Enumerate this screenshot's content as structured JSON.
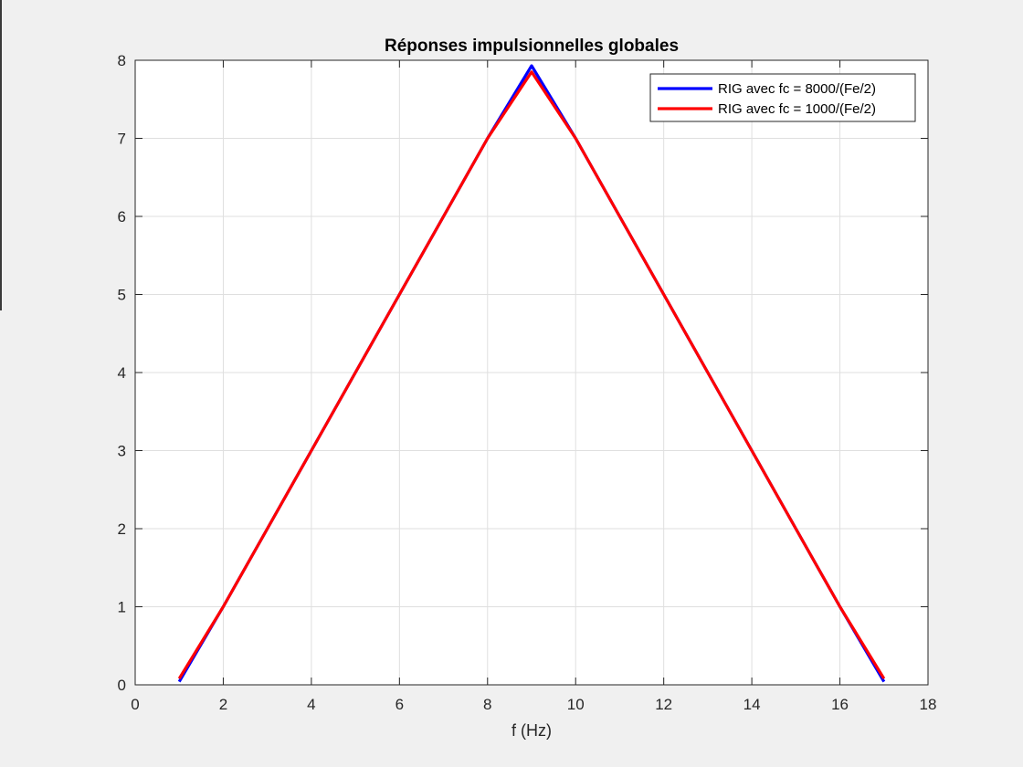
{
  "chart_data": {
    "type": "line",
    "title": "Réponses impulsionnelles globales",
    "xlabel": "f (Hz)",
    "ylabel": "",
    "xlim": [
      0,
      18
    ],
    "ylim": [
      0,
      8
    ],
    "xticks": [
      0,
      2,
      4,
      6,
      8,
      10,
      12,
      14,
      16,
      18
    ],
    "yticks": [
      0,
      1,
      2,
      3,
      4,
      5,
      6,
      7,
      8
    ],
    "grid": true,
    "legend_position": "top-right",
    "series": [
      {
        "name": "RIG avec fc = 8000/(Fe/2)",
        "color": "#0000ff",
        "x": [
          1,
          2,
          3,
          4,
          5,
          6,
          7,
          8,
          9,
          10,
          11,
          12,
          13,
          14,
          15,
          16,
          17
        ],
        "y": [
          0.04,
          1,
          2,
          3,
          4,
          5,
          6,
          7,
          7.93,
          7,
          6,
          5,
          4,
          3,
          2,
          1,
          0.04
        ]
      },
      {
        "name": "RIG avec fc = 1000/(Fe/2)",
        "color": "#ff0000",
        "x": [
          1,
          2,
          3,
          4,
          5,
          6,
          7,
          8,
          9,
          10,
          11,
          12,
          13,
          14,
          15,
          16,
          17
        ],
        "y": [
          0.08,
          1,
          2,
          3,
          4,
          5,
          6,
          7,
          7.85,
          7,
          6,
          5,
          4,
          3,
          2,
          1,
          0.08
        ]
      }
    ]
  }
}
